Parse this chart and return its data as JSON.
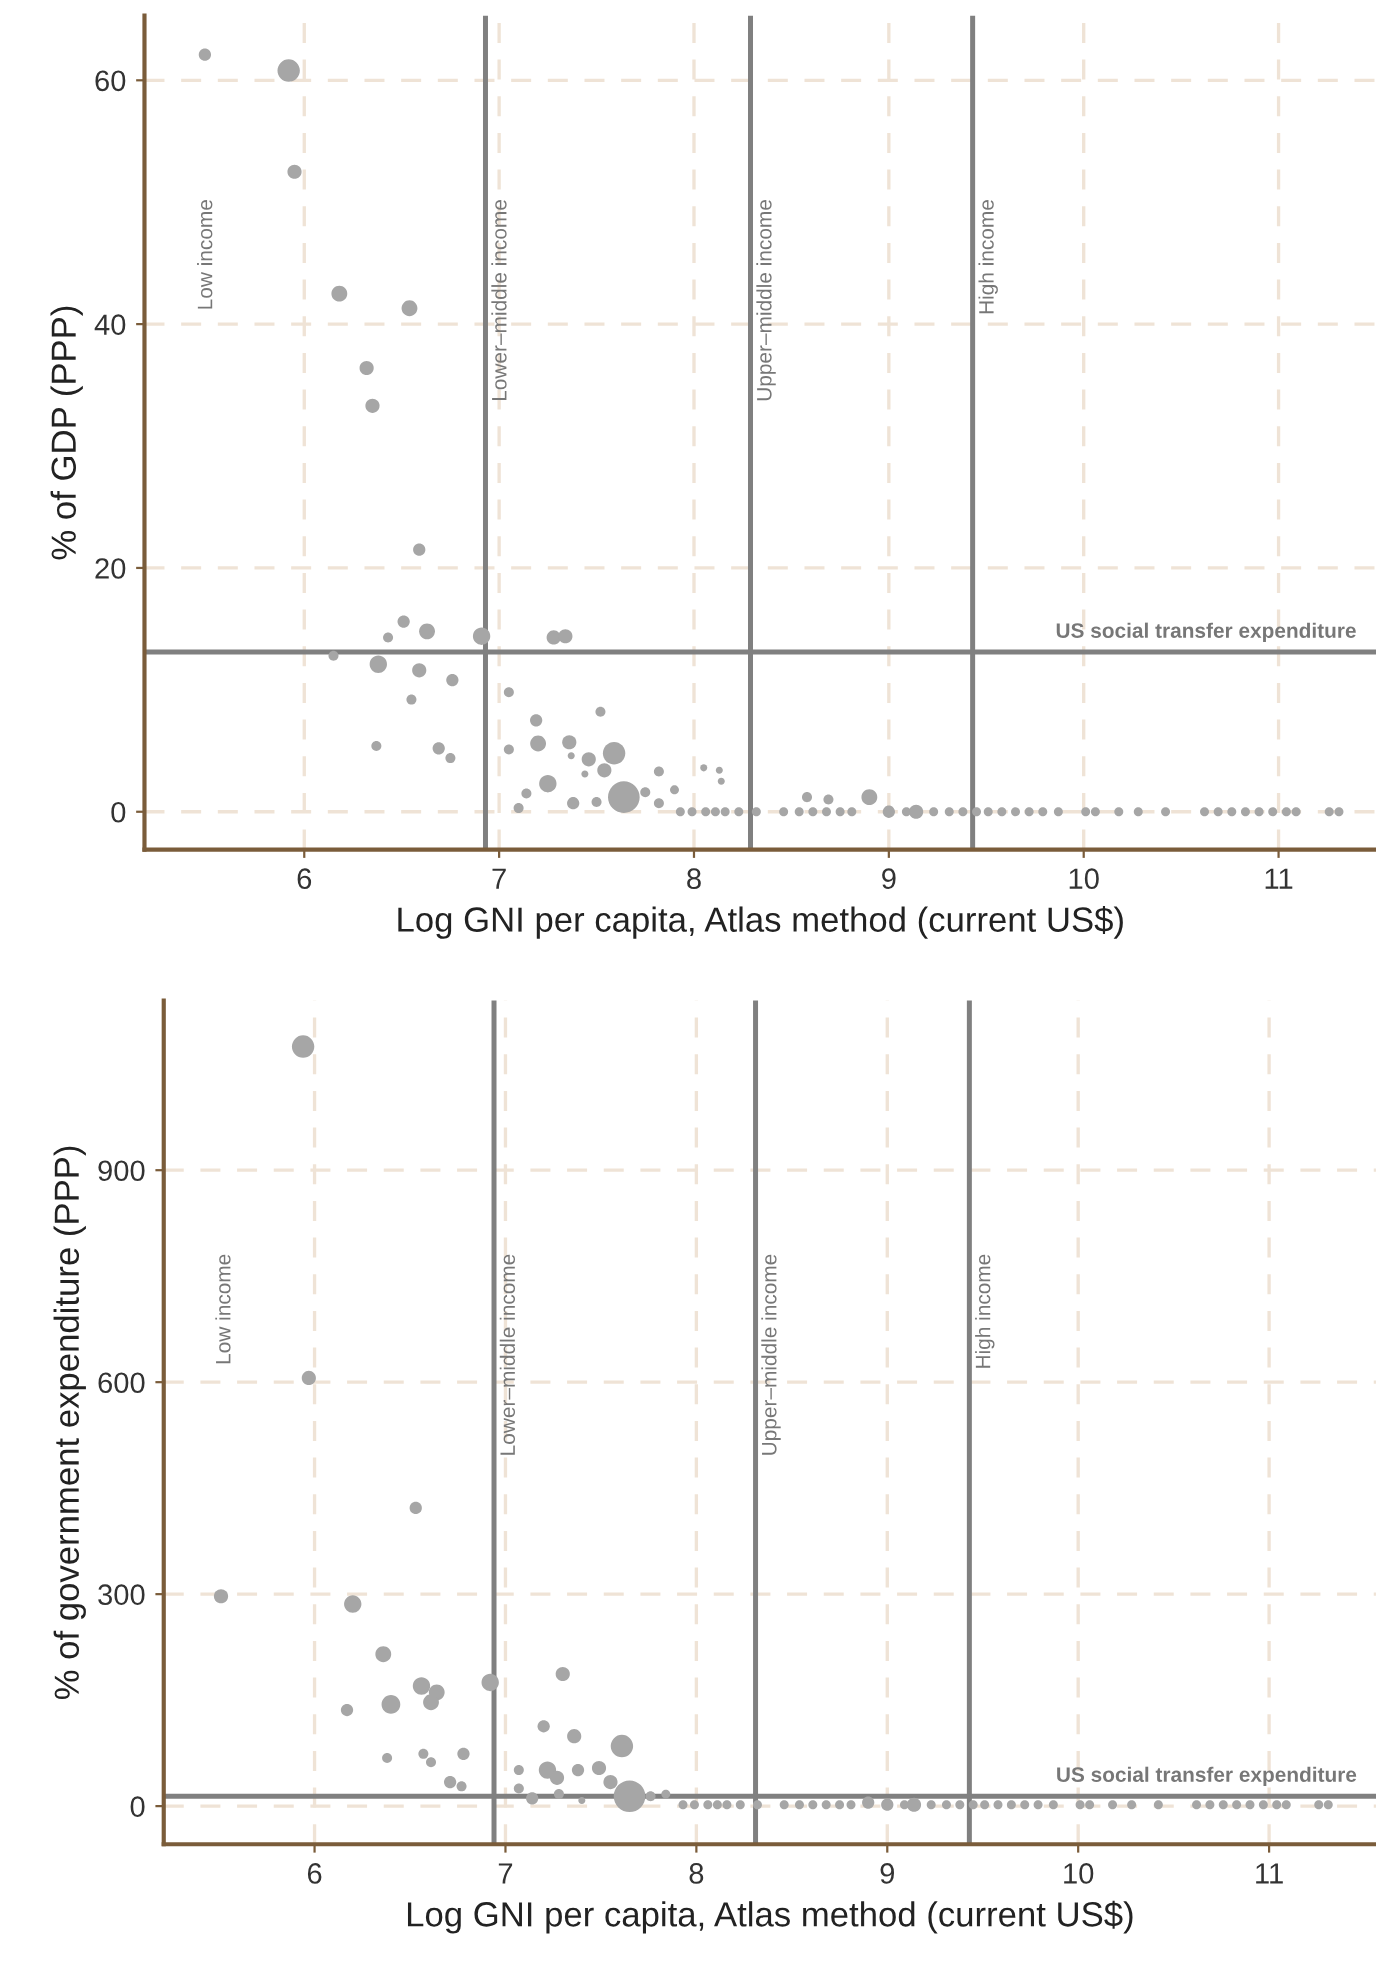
{
  "chart_data": [
    {
      "type": "bubble",
      "xlabel": "Log GNI per capita, Atlas method (current US$)",
      "ylabel": "% of GDP (PPP)",
      "xlim": [
        5.18,
        11.5
      ],
      "ylim": [
        -3.1,
        65.3
      ],
      "xticks": [
        6,
        7,
        8,
        9,
        10,
        11
      ],
      "yticks": [
        0,
        20,
        40,
        60
      ],
      "grid": true,
      "series": [
        {
          "color": "#a6a6a6",
          "x": [
            5.49,
            5.92,
            5.95,
            6.18,
            6.54,
            6.32,
            6.35,
            6.59,
            6.51,
            6.43,
            6.63,
            6.91,
            7.28,
            7.34,
            6.15,
            6.38,
            6.59,
            6.76,
            6.55,
            6.37,
            6.69,
            6.75,
            7.05,
            7.19,
            7.52,
            7.05,
            7.2,
            7.36,
            7.37,
            7.46,
            7.59,
            7.54,
            7.44,
            7.82,
            8.05,
            8.13,
            8.14,
            7.25,
            7.14,
            7.1,
            7.38,
            7.5,
            7.64,
            7.75,
            7.82,
            7.9,
            8.9,
            8.58,
            8.69,
            7.93,
            7.99,
            8.06,
            8.11,
            8.16,
            8.23,
            8.32,
            8.46,
            8.54,
            8.61,
            8.68,
            8.75,
            8.81,
            9.0,
            9.09,
            9.14,
            9.23,
            9.31,
            9.38,
            9.45,
            9.51,
            9.58,
            9.65,
            9.72,
            9.79,
            9.87,
            10.01,
            10.06,
            10.18,
            10.28,
            10.42,
            10.62,
            10.69,
            10.76,
            10.83,
            10.9,
            10.97,
            11.04,
            11.09,
            11.26,
            11.31
          ],
          "values": [
            62.1,
            60.8,
            52.5,
            42.5,
            41.3,
            36.4,
            33.3,
            21.5,
            15.6,
            14.3,
            14.8,
            14.4,
            14.3,
            14.4,
            12.8,
            12.1,
            11.6,
            10.8,
            9.2,
            5.4,
            5.2,
            4.4,
            9.8,
            7.5,
            8.2,
            5.1,
            5.6,
            5.7,
            4.6,
            4.3,
            4.8,
            3.4,
            3.1,
            3.3,
            3.6,
            3.4,
            2.5,
            2.3,
            1.5,
            0.3,
            0.7,
            0.8,
            1.2,
            1.6,
            0.7,
            1.8,
            1.2,
            1.2,
            1.0,
            0,
            0,
            0,
            0,
            0,
            0,
            0,
            0,
            0,
            0,
            0,
            0,
            0,
            0,
            0,
            0,
            0,
            0,
            0,
            0,
            0,
            0,
            0,
            0,
            0,
            0,
            0,
            0,
            0,
            0,
            0,
            0,
            0,
            0,
            0,
            0,
            0,
            0,
            0,
            0,
            0
          ],
          "sizes": [
            0.15,
            0.5,
            0.2,
            0.25,
            0.25,
            0.2,
            0.2,
            0.15,
            0.15,
            0.1,
            0.25,
            0.3,
            0.2,
            0.2,
            0.1,
            0.3,
            0.2,
            0.15,
            0.1,
            0.1,
            0.15,
            0.1,
            0.1,
            0.15,
            0.1,
            0.1,
            0.25,
            0.2,
            0.05,
            0.2,
            0.5,
            0.2,
            0.05,
            0.1,
            0.05,
            0.05,
            0.05,
            0.3,
            0.1,
            0.1,
            0.15,
            0.1,
            1,
            0.1,
            0.1,
            0.08,
            0.25,
            0.1,
            0.1,
            0.08,
            0.08,
            0.08,
            0.08,
            0.08,
            0.08,
            0.08,
            0.08,
            0.08,
            0.08,
            0.08,
            0.08,
            0.08,
            0.15,
            0.08,
            0.2,
            0.08,
            0.08,
            0.08,
            0.08,
            0.08,
            0.08,
            0.08,
            0.08,
            0.08,
            0.08,
            0.08,
            0.08,
            0.08,
            0.08,
            0.08,
            0.08,
            0.08,
            0.08,
            0.08,
            0.08,
            0.08,
            0.08,
            0.08,
            0.08,
            0.08
          ]
        }
      ],
      "ref_lines": [
        {
          "axis": "x",
          "value": 6.93,
          "label": "Lower–middle income",
          "color": "#808080"
        },
        {
          "axis": "x",
          "value": 8.29,
          "label": "Upper–middle income",
          "color": "#808080"
        },
        {
          "axis": "x",
          "value": 9.43,
          "label": "High income",
          "color": "#808080"
        },
        {
          "axis": "y",
          "value": 13.1,
          "label": "US social transfer expenditure",
          "color": "#808080"
        }
      ],
      "annotations": [
        "Low income"
      ]
    },
    {
      "type": "bubble",
      "xlabel": "Log GNI per capita, Atlas method (current US$)",
      "ylabel": "% of government expenditure (PPP)",
      "xlim": [
        5.21,
        11.56
      ],
      "ylim": [
        -54,
        1140
      ],
      "xticks": [
        6,
        7,
        8,
        9,
        10,
        11
      ],
      "yticks": [
        0,
        300,
        600,
        900
      ],
      "grid": true,
      "series": [
        {
          "color": "#a6a6a6",
          "x": [
            5.94,
            5.97,
            5.51,
            6.53,
            6.2,
            6.36,
            6.56,
            6.64,
            6.61,
            6.4,
            6.17,
            6.92,
            7.3,
            6.38,
            6.57,
            6.61,
            6.78,
            6.71,
            6.77,
            7.2,
            7.36,
            7.61,
            7.07,
            7.22,
            7.27,
            7.38,
            7.49,
            7.55,
            7.07,
            7.14,
            7.28,
            7.4,
            7.65,
            7.76,
            7.84,
            8.9,
            7.93,
            7.99,
            8.06,
            8.11,
            8.16,
            8.23,
            8.32,
            8.46,
            8.54,
            8.61,
            8.68,
            8.75,
            8.81,
            9.0,
            9.09,
            9.14,
            9.23,
            9.31,
            9.38,
            9.45,
            9.51,
            9.58,
            9.65,
            9.72,
            9.79,
            9.87,
            10.01,
            10.06,
            10.18,
            10.28,
            10.42,
            10.62,
            10.69,
            10.76,
            10.83,
            10.9,
            10.97,
            11.04,
            11.09,
            11.26,
            11.31
          ],
          "values": [
            1075,
            606,
            297,
            422,
            286,
            215,
            170,
            161,
            147,
            144,
            136,
            175,
            187,
            68,
            74,
            62,
            74,
            34,
            28,
            113,
            99,
            85,
            51,
            51,
            40,
            51,
            54,
            34,
            25,
            11,
            17,
            8,
            14,
            14,
            17,
            5,
            2,
            2,
            2,
            2,
            2,
            2,
            2,
            2,
            2,
            2,
            2,
            2,
            2,
            2,
            2,
            2,
            2,
            2,
            2,
            2,
            2,
            2,
            2,
            2,
            2,
            2,
            2,
            2,
            2,
            2,
            2,
            2,
            2,
            2,
            2,
            2,
            2,
            2,
            2,
            2,
            2
          ],
          "sizes": [
            0.5,
            0.2,
            0.2,
            0.15,
            0.3,
            0.25,
            0.3,
            0.25,
            0.25,
            0.35,
            0.15,
            0.3,
            0.2,
            0.1,
            0.1,
            0.1,
            0.15,
            0.15,
            0.1,
            0.15,
            0.2,
            0.5,
            0.1,
            0.3,
            0.2,
            0.15,
            0.2,
            0.2,
            0.1,
            0.15,
            0.1,
            0.05,
            1,
            0.1,
            0.08,
            0.15,
            0.08,
            0.08,
            0.08,
            0.08,
            0.08,
            0.08,
            0.08,
            0.08,
            0.08,
            0.08,
            0.08,
            0.08,
            0.08,
            0.15,
            0.08,
            0.2,
            0.08,
            0.08,
            0.08,
            0.08,
            0.08,
            0.08,
            0.08,
            0.08,
            0.08,
            0.08,
            0.08,
            0.08,
            0.08,
            0.08,
            0.08,
            0.08,
            0.08,
            0.08,
            0.08,
            0.08,
            0.08,
            0.08,
            0.08,
            0.08,
            0.08
          ]
        }
      ],
      "ref_lines": [
        {
          "axis": "x",
          "value": 6.94,
          "label": "Lower–middle income",
          "color": "#808080"
        },
        {
          "axis": "x",
          "value": 8.31,
          "label": "Upper–middle income",
          "color": "#808080"
        },
        {
          "axis": "x",
          "value": 9.43,
          "label": "High income",
          "color": "#808080"
        },
        {
          "axis": "y",
          "value": 14,
          "label": "US social transfer expenditure",
          "color": "#808080"
        }
      ],
      "annotations": [
        "Low income"
      ]
    }
  ]
}
